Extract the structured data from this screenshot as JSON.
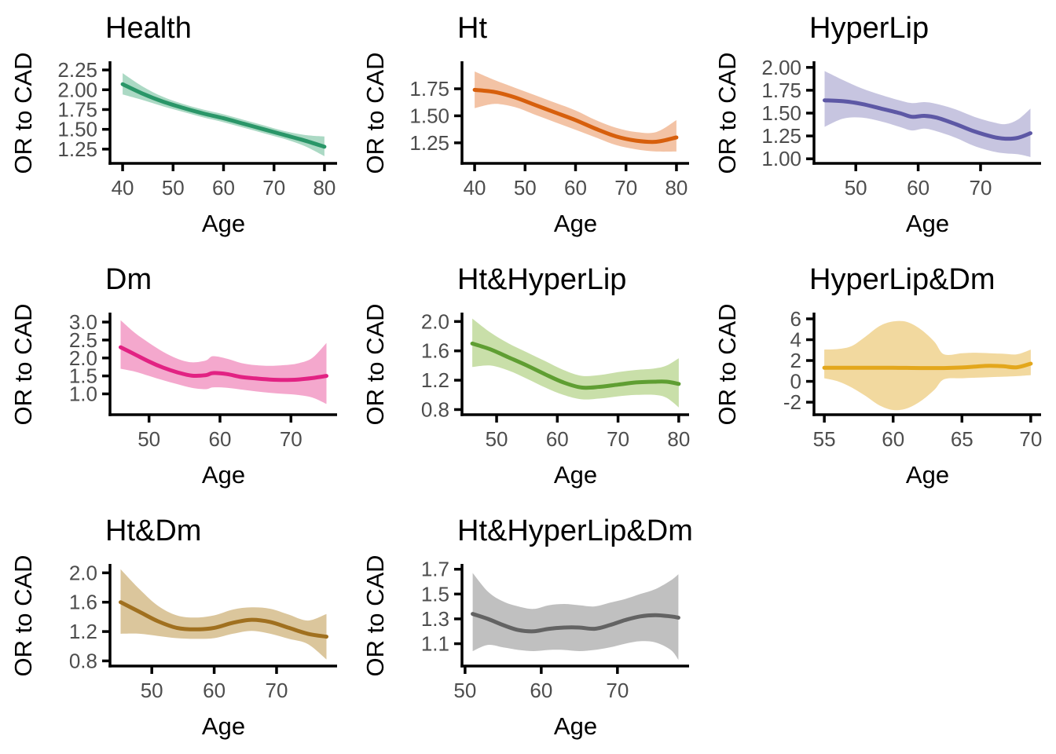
{
  "figure": {
    "background": "#ffffff",
    "axis_color": "#000000",
    "tick_label_color": "#4d4d4d",
    "title_color": "#000000",
    "shared_xlabel": "Age",
    "shared_ylabel": "OR to CAD"
  },
  "chart_data": [
    {
      "type": "line",
      "title": "Health",
      "xlabel": "Age",
      "ylabel": "OR to CAD",
      "line_color": "#2a9668",
      "band_color": "#abd9c4",
      "xlim": [
        37.5,
        82.5
      ],
      "ylim": [
        1.07,
        2.34
      ],
      "xticks": [
        40,
        50,
        60,
        70,
        80
      ],
      "xtick_labels": [
        "40",
        "50",
        "60",
        "70",
        "80"
      ],
      "yticks": [
        1.25,
        1.5,
        1.75,
        2.0,
        2.25
      ],
      "ytick_labels": [
        "1.25",
        "1.50",
        "1.75",
        "2.00",
        "2.25"
      ],
      "x": [
        40,
        44,
        48,
        52,
        56,
        60,
        64,
        68,
        72,
        76,
        80
      ],
      "y": [
        2.07,
        1.95,
        1.85,
        1.77,
        1.7,
        1.64,
        1.57,
        1.5,
        1.43,
        1.36,
        1.28
      ],
      "lo": [
        1.94,
        1.87,
        1.79,
        1.72,
        1.65,
        1.59,
        1.52,
        1.45,
        1.38,
        1.29,
        1.16
      ],
      "hi": [
        2.21,
        2.04,
        1.91,
        1.82,
        1.75,
        1.69,
        1.62,
        1.55,
        1.48,
        1.43,
        1.41
      ]
    },
    {
      "type": "line",
      "title": "Ht",
      "xlabel": "Age",
      "ylabel": "OR to CAD",
      "line_color": "#d75f0c",
      "band_color": "#f3c3a5",
      "xlim": [
        37.5,
        82.5
      ],
      "ylim": [
        1.06,
        1.99
      ],
      "xticks": [
        40,
        50,
        60,
        70,
        80
      ],
      "xtick_labels": [
        "40",
        "50",
        "60",
        "70",
        "80"
      ],
      "yticks": [
        1.25,
        1.5,
        1.75
      ],
      "ytick_labels": [
        "1.25",
        "1.50",
        "1.75"
      ],
      "x": [
        40,
        44,
        48,
        52,
        56,
        60,
        64,
        68,
        72,
        76,
        80
      ],
      "y": [
        1.74,
        1.72,
        1.67,
        1.6,
        1.53,
        1.46,
        1.38,
        1.31,
        1.27,
        1.26,
        1.3
      ],
      "lo": [
        1.57,
        1.61,
        1.58,
        1.51,
        1.44,
        1.37,
        1.3,
        1.23,
        1.19,
        1.17,
        1.17
      ],
      "hi": [
        1.91,
        1.83,
        1.76,
        1.69,
        1.62,
        1.55,
        1.46,
        1.39,
        1.35,
        1.35,
        1.46
      ]
    },
    {
      "type": "line",
      "title": "HyperLip",
      "xlabel": "Age",
      "ylabel": "OR to CAD",
      "line_color": "#5d58a5",
      "band_color": "#c7c5e0",
      "xlim": [
        43.3,
        79.7
      ],
      "ylim": [
        0.95,
        2.05
      ],
      "xticks": [
        50,
        60,
        70
      ],
      "xtick_labels": [
        "50",
        "60",
        "70"
      ],
      "yticks": [
        1.0,
        1.25,
        1.5,
        1.75,
        2.0
      ],
      "ytick_labels": [
        "1.00",
        "1.25",
        "1.50",
        "1.75",
        "2.00"
      ],
      "x": [
        45,
        48,
        51,
        54,
        57,
        59,
        61,
        63,
        66,
        69,
        72,
        74,
        76,
        78
      ],
      "y": [
        1.64,
        1.63,
        1.6,
        1.55,
        1.5,
        1.46,
        1.47,
        1.45,
        1.38,
        1.3,
        1.24,
        1.22,
        1.23,
        1.28
      ],
      "lo": [
        1.35,
        1.44,
        1.45,
        1.41,
        1.35,
        1.31,
        1.33,
        1.3,
        1.23,
        1.14,
        1.08,
        1.06,
        1.05,
        1.02
      ],
      "hi": [
        1.96,
        1.86,
        1.77,
        1.7,
        1.64,
        1.61,
        1.62,
        1.6,
        1.54,
        1.46,
        1.4,
        1.38,
        1.43,
        1.55
      ]
    },
    {
      "type": "line",
      "title": "Dm",
      "xlabel": "Age",
      "ylabel": "OR to CAD",
      "line_color": "#e22283",
      "band_color": "#f4a8cd",
      "xlim": [
        44.5,
        76.5
      ],
      "ylim": [
        0.42,
        3.22
      ],
      "xticks": [
        50,
        60,
        70
      ],
      "xtick_labels": [
        "50",
        "60",
        "70"
      ],
      "yticks": [
        1.0,
        1.5,
        2.0,
        2.5,
        3.0
      ],
      "ytick_labels": [
        "1.0",
        "1.5",
        "2.0",
        "2.5",
        "3.0"
      ],
      "x": [
        46,
        48,
        50,
        52,
        54,
        56,
        58,
        59,
        61,
        63,
        65,
        67,
        69,
        71,
        73,
        75
      ],
      "y": [
        2.3,
        2.1,
        1.9,
        1.73,
        1.6,
        1.51,
        1.52,
        1.58,
        1.55,
        1.47,
        1.43,
        1.4,
        1.39,
        1.4,
        1.44,
        1.5
      ],
      "lo": [
        1.7,
        1.62,
        1.5,
        1.38,
        1.27,
        1.17,
        1.13,
        1.18,
        1.17,
        1.12,
        1.07,
        1.03,
        1.0,
        0.97,
        0.9,
        0.72
      ],
      "hi": [
        3.05,
        2.7,
        2.42,
        2.17,
        1.98,
        1.88,
        1.93,
        2.05,
        1.98,
        1.86,
        1.8,
        1.78,
        1.8,
        1.85,
        2.0,
        2.42
      ]
    },
    {
      "type": "line",
      "title": "Ht&HyperLip",
      "xlabel": "Age",
      "ylabel": "OR to CAD",
      "line_color": "#5f9e32",
      "band_color": "#c9dfa9",
      "xlim": [
        44.3,
        81.7
      ],
      "ylim": [
        0.73,
        2.1
      ],
      "xticks": [
        50,
        60,
        70,
        80
      ],
      "xtick_labels": [
        "50",
        "60",
        "70",
        "80"
      ],
      "yticks": [
        0.8,
        1.2,
        1.6,
        2.0
      ],
      "ytick_labels": [
        "0.8",
        "1.2",
        "1.6",
        "2.0"
      ],
      "x": [
        46,
        49,
        52,
        55,
        58,
        61,
        64,
        67,
        70,
        73,
        76,
        78,
        80
      ],
      "y": [
        1.7,
        1.62,
        1.51,
        1.4,
        1.28,
        1.17,
        1.1,
        1.11,
        1.14,
        1.17,
        1.18,
        1.18,
        1.15
      ],
      "lo": [
        1.38,
        1.4,
        1.33,
        1.22,
        1.1,
        1.0,
        0.94,
        0.95,
        0.98,
        1.0,
        1.0,
        0.96,
        0.83
      ],
      "hi": [
        2.04,
        1.85,
        1.7,
        1.58,
        1.46,
        1.34,
        1.26,
        1.27,
        1.31,
        1.34,
        1.36,
        1.4,
        1.5
      ]
    },
    {
      "type": "line",
      "title": "HyperLip&Dm",
      "xlabel": "Age",
      "ylabel": "OR to CAD",
      "line_color": "#e3a71c",
      "band_color": "#f2d99f",
      "xlim": [
        54.25,
        70.75
      ],
      "ylim": [
        -3.2,
        6.45
      ],
      "xticks": [
        55,
        60,
        65,
        70
      ],
      "xtick_labels": [
        "55",
        "60",
        "65",
        "70"
      ],
      "yticks": [
        -2,
        0,
        2,
        4,
        6
      ],
      "ytick_labels": [
        "-2",
        "0",
        "2",
        "4",
        "6"
      ],
      "x": [
        55,
        56,
        57,
        58,
        59,
        60,
        61,
        62,
        63,
        63.7,
        65,
        66,
        67,
        68,
        69,
        70
      ],
      "y": [
        1.3,
        1.3,
        1.31,
        1.31,
        1.3,
        1.3,
        1.29,
        1.28,
        1.28,
        1.28,
        1.33,
        1.42,
        1.5,
        1.45,
        1.35,
        1.7
      ],
      "lo": [
        0.3,
        0.0,
        -0.6,
        -1.4,
        -2.3,
        -2.75,
        -2.6,
        -1.9,
        -0.8,
        0.2,
        0.3,
        0.35,
        0.4,
        0.45,
        0.5,
        0.6
      ],
      "hi": [
        3.05,
        3.1,
        3.4,
        4.3,
        5.3,
        5.75,
        5.7,
        5.0,
        3.8,
        2.6,
        2.7,
        2.75,
        2.7,
        2.65,
        2.6,
        3.05
      ]
    },
    {
      "type": "line",
      "title": "Ht&Dm",
      "xlabel": "Age",
      "ylabel": "OR to CAD",
      "line_color": "#a0701f",
      "band_color": "#dbc69c",
      "xlim": [
        43.3,
        79.7
      ],
      "ylim": [
        0.73,
        2.1
      ],
      "xticks": [
        50,
        60,
        70
      ],
      "xtick_labels": [
        "50",
        "60",
        "70"
      ],
      "yticks": [
        0.8,
        1.2,
        1.6,
        2.0
      ],
      "ytick_labels": [
        "0.8",
        "1.2",
        "1.6",
        "2.0"
      ],
      "x": [
        45,
        48,
        51,
        54,
        57,
        60,
        63,
        66,
        69,
        72,
        75,
        78
      ],
      "y": [
        1.6,
        1.47,
        1.34,
        1.25,
        1.23,
        1.25,
        1.32,
        1.36,
        1.33,
        1.25,
        1.17,
        1.13
      ],
      "lo": [
        1.17,
        1.17,
        1.14,
        1.11,
        1.1,
        1.11,
        1.17,
        1.21,
        1.17,
        1.1,
        1.03,
        0.82
      ],
      "hi": [
        2.05,
        1.78,
        1.55,
        1.42,
        1.39,
        1.42,
        1.5,
        1.53,
        1.51,
        1.43,
        1.35,
        1.44
      ]
    },
    {
      "type": "line",
      "title": "Ht&HyperLip&Dm",
      "xlabel": "Age",
      "ylabel": "OR to CAD",
      "line_color": "#636363",
      "band_color": "#c0c0c0",
      "xlim": [
        49.6,
        79.4
      ],
      "ylim": [
        0.92,
        1.73
      ],
      "xticks": [
        50,
        60,
        70
      ],
      "xtick_labels": [
        "50",
        "60",
        "70"
      ],
      "yticks": [
        1.1,
        1.3,
        1.5,
        1.7
      ],
      "ytick_labels": [
        "1.1",
        "1.3",
        "1.5",
        "1.7"
      ],
      "x": [
        51,
        53,
        55,
        57,
        59,
        61,
        63,
        65,
        67,
        69,
        71,
        73,
        75,
        77,
        78
      ],
      "y": [
        1.34,
        1.3,
        1.25,
        1.21,
        1.2,
        1.22,
        1.23,
        1.23,
        1.22,
        1.25,
        1.29,
        1.32,
        1.33,
        1.32,
        1.31
      ],
      "lo": [
        1.04,
        1.09,
        1.07,
        1.05,
        1.04,
        1.05,
        1.05,
        1.04,
        1.05,
        1.07,
        1.1,
        1.12,
        1.11,
        1.05,
        0.97
      ],
      "hi": [
        1.67,
        1.52,
        1.44,
        1.4,
        1.38,
        1.41,
        1.42,
        1.41,
        1.4,
        1.43,
        1.46,
        1.5,
        1.54,
        1.61,
        1.66
      ]
    }
  ]
}
